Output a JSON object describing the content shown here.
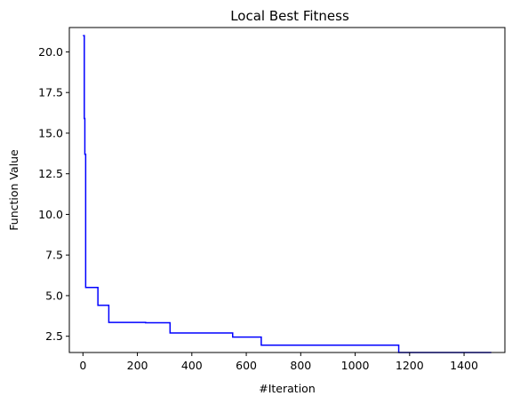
{
  "chart_data": {
    "type": "line",
    "title": "Local Best Fitness",
    "xlabel": "#Iteration",
    "ylabel": "Function Value",
    "xlim": [
      -50,
      1550
    ],
    "ylim": [
      1.5,
      21.5
    ],
    "xticks": [
      0,
      200,
      400,
      600,
      800,
      1000,
      1200,
      1400
    ],
    "yticks": [
      2.5,
      5.0,
      7.5,
      10.0,
      12.5,
      15.0,
      17.5,
      20.0
    ],
    "ytick_labels": [
      "2.5",
      "5.0",
      "7.5",
      "10.0",
      "12.5",
      "15.0",
      "17.5",
      "20.0"
    ],
    "grid": false,
    "legend": "none",
    "series": [
      {
        "color": "#0000ff",
        "step": true,
        "x": [
          0,
          4,
          5,
          7,
          10,
          55,
          95,
          230,
          320,
          550,
          655,
          1160,
          1500
        ],
        "y": [
          21.0,
          21.0,
          15.9,
          13.7,
          5.5,
          4.4,
          3.35,
          3.33,
          2.7,
          2.45,
          1.95,
          1.5,
          1.5
        ]
      }
    ]
  }
}
